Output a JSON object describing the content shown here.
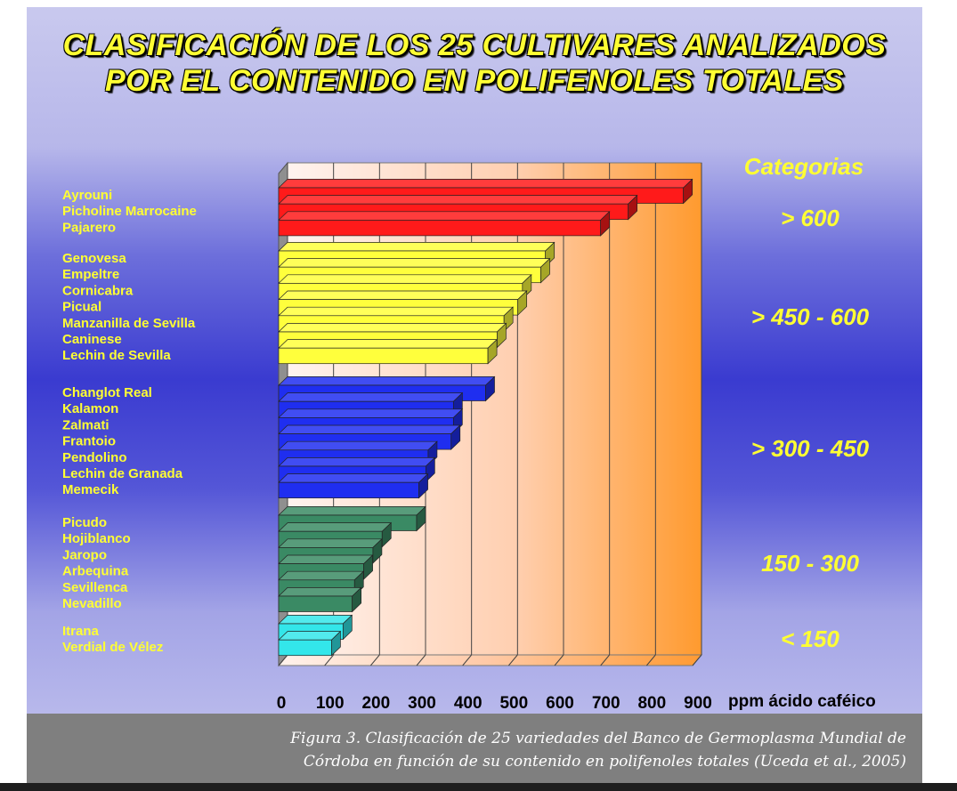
{
  "title_line1": "CLASIFICACIÓN DE LOS 25 CULTIVARES ANALIZADOS",
  "title_line2": "POR EL CONTENIDO EN POLIFENOLES TOTALES",
  "categories_heading": "Categorias",
  "caption_line1": "Figura 3. Clasificación de 25 variedades del Banco de Germoplasma Mundial de",
  "caption_line2": "Córdoba en función de su contenido en polifenoles totales (Uceda et al., 2005)",
  "colors": {
    "title": "#ffff33",
    "red": "#ff1a1a",
    "yellow": "#ffff3c",
    "blue": "#1f2ef0",
    "green": "#3a8a64",
    "cyan": "#33e6ea"
  },
  "chart_data": {
    "type": "bar",
    "orientation": "horizontal",
    "xlabel": "ppm ácido caféico",
    "xlim": [
      0,
      900
    ],
    "xticks": [
      "0",
      "100",
      "200",
      "300",
      "400",
      "500",
      "600",
      "700",
      "800",
      "900"
    ],
    "grid": true,
    "groups": [
      {
        "category": "> 600",
        "color": "#ff1a1a",
        "cultivars": [
          {
            "name": "Ayrouni",
            "value": 880
          },
          {
            "name": "Picholine Marrocaine",
            "value": 760
          },
          {
            "name": "Pajarero",
            "value": 700
          }
        ]
      },
      {
        "category": "> 450 - 600",
        "color": "#ffff3c",
        "cultivars": [
          {
            "name": "Genovesa",
            "value": 580
          },
          {
            "name": "Empeltre",
            "value": 570
          },
          {
            "name": "Cornicabra",
            "value": 530
          },
          {
            "name": "Picual",
            "value": 520
          },
          {
            "name": "Manzanilla de Sevilla",
            "value": 490
          },
          {
            "name": "Caninese",
            "value": 475
          },
          {
            "name": "Lechin de Sevilla",
            "value": 455
          }
        ]
      },
      {
        "category": "> 300 - 450",
        "color": "#1f2ef0",
        "cultivars": [
          {
            "name": "Changlot Real",
            "value": 450
          },
          {
            "name": "Kalamon",
            "value": 380
          },
          {
            "name": "Zalmati",
            "value": 380
          },
          {
            "name": "Frantoio",
            "value": 375
          },
          {
            "name": "Pendolino",
            "value": 325
          },
          {
            "name": "Lechin de Granada",
            "value": 320
          },
          {
            "name": "Memecik",
            "value": 305
          }
        ]
      },
      {
        "category": "150 - 300",
        "color": "#3a8a64",
        "cultivars": [
          {
            "name": "Picudo",
            "value": 300
          },
          {
            "name": "Hojiblanco",
            "value": 225
          },
          {
            "name": "Jaropo",
            "value": 205
          },
          {
            "name": "Arbequina",
            "value": 185
          },
          {
            "name": "Sevillenca",
            "value": 165
          },
          {
            "name": "Nevadillo",
            "value": 160
          }
        ]
      },
      {
        "category": "< 150",
        "color": "#33e6ea",
        "cultivars": [
          {
            "name": "Itrana",
            "value": 140
          },
          {
            "name": "Verdial de Vélez",
            "value": 115
          }
        ]
      }
    ]
  }
}
